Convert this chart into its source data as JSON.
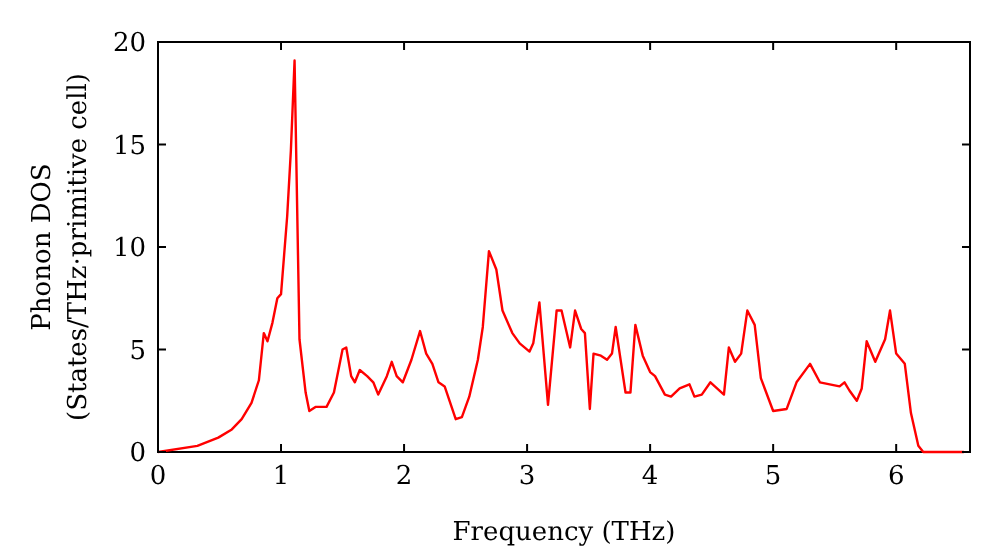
{
  "chart_data": {
    "type": "line",
    "xlabel": "Frequency (THz)",
    "ylabel": "Phonon DOS\n(States/THz·primitive cell)",
    "xlim": [
      0,
      6.6
    ],
    "ylim": [
      0,
      20
    ],
    "xticks": [
      0,
      1,
      2,
      3,
      4,
      5,
      6
    ],
    "yticks": [
      0,
      5,
      10,
      15,
      20
    ],
    "grid": false,
    "marker": "none",
    "line_style": "solid",
    "series": [
      {
        "color": "#ff0000",
        "x": [
          0,
          0.32,
          0.49,
          0.6,
          0.68,
          0.76,
          0.82,
          0.86,
          0.89,
          0.93,
          0.97,
          1.0,
          1.05,
          1.08,
          1.11,
          1.15,
          1.2,
          1.23,
          1.28,
          1.37,
          1.43,
          1.5,
          1.53,
          1.57,
          1.6,
          1.64,
          1.7,
          1.75,
          1.79,
          1.86,
          1.9,
          1.94,
          1.99,
          2.06,
          2.13,
          2.18,
          2.23,
          2.28,
          2.33,
          2.42,
          2.47,
          2.53,
          2.6,
          2.64,
          2.69,
          2.75,
          2.8,
          2.88,
          2.94,
          3.02,
          3.05,
          3.1,
          3.17,
          3.24,
          3.28,
          3.35,
          3.39,
          3.44,
          3.47,
          3.51,
          3.54,
          3.6,
          3.65,
          3.69,
          3.72,
          3.8,
          3.84,
          3.88,
          3.94,
          4.0,
          4.04,
          4.12,
          4.17,
          4.24,
          4.32,
          4.36,
          4.42,
          4.49,
          4.6,
          4.64,
          4.69,
          4.74,
          4.79,
          4.85,
          4.9,
          5.0,
          5.11,
          5.19,
          5.3,
          5.38,
          5.46,
          5.54,
          5.58,
          5.62,
          5.68,
          5.72,
          5.76,
          5.83,
          5.91,
          5.95,
          6.0,
          6.07,
          6.12,
          6.18,
          6.22,
          6.55
        ],
        "values": [
          0,
          0.3,
          0.7,
          1.1,
          1.6,
          2.4,
          3.5,
          5.8,
          5.4,
          6.3,
          7.5,
          7.7,
          11.5,
          14.7,
          19.1,
          5.5,
          2.9,
          2.0,
          2.2,
          2.2,
          2.9,
          5.0,
          5.1,
          3.7,
          3.4,
          4.0,
          3.7,
          3.4,
          2.8,
          3.7,
          4.4,
          3.7,
          3.4,
          4.5,
          5.9,
          4.8,
          4.3,
          3.4,
          3.2,
          1.6,
          1.7,
          2.7,
          4.5,
          6.1,
          9.8,
          8.9,
          6.9,
          5.8,
          5.3,
          4.9,
          5.3,
          7.3,
          2.3,
          6.9,
          6.9,
          5.1,
          6.9,
          6.0,
          5.8,
          2.1,
          4.8,
          4.7,
          4.5,
          4.8,
          6.1,
          2.9,
          2.9,
          6.2,
          4.7,
          3.9,
          3.7,
          2.8,
          2.7,
          3.1,
          3.3,
          2.7,
          2.8,
          3.4,
          2.8,
          5.1,
          4.4,
          4.8,
          6.9,
          6.2,
          3.6,
          2.0,
          2.1,
          3.4,
          4.3,
          3.4,
          3.3,
          3.2,
          3.4,
          3.0,
          2.5,
          3.1,
          5.4,
          4.4,
          5.5,
          6.9,
          4.8,
          4.3,
          1.9,
          0.3,
          0,
          0
        ]
      }
    ]
  }
}
